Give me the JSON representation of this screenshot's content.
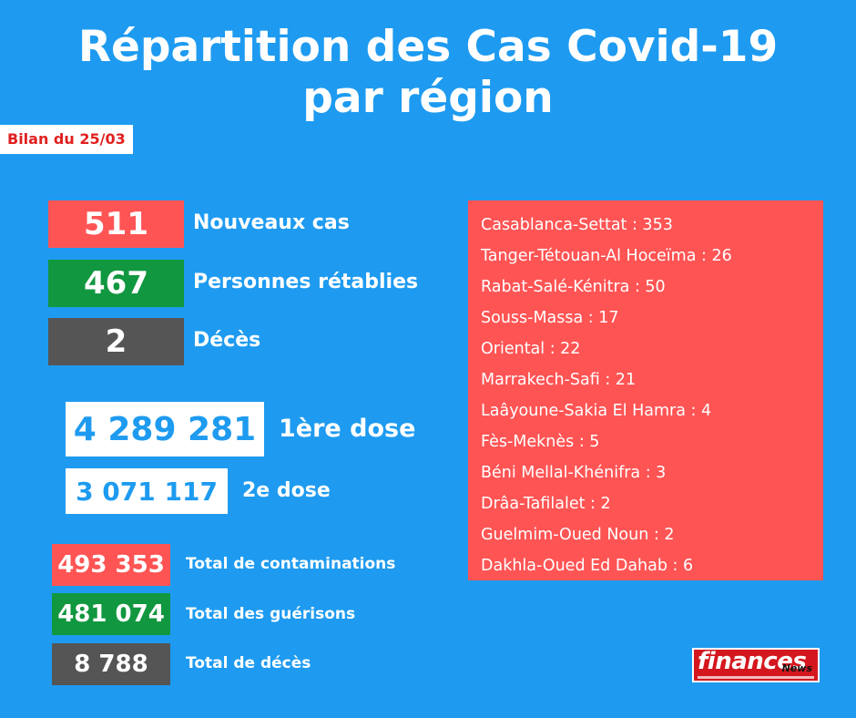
{
  "header": {
    "title_line1": "Répartition des Cas Covid-19",
    "title_line2": "par région",
    "bilan": "Bilan du 25/03"
  },
  "daily": {
    "new_cases": {
      "value": "511",
      "label": "Nouveaux cas"
    },
    "recovered": {
      "value": "467",
      "label": "Personnes rétablies"
    },
    "deaths": {
      "value": "2",
      "label": "Décès"
    }
  },
  "vaccination": {
    "dose1": {
      "value": "4 289 281",
      "label": "1ère dose"
    },
    "dose2": {
      "value": "3 071 117",
      "label": "2e dose"
    }
  },
  "totals": {
    "contaminations": {
      "value": "493 353",
      "label": "Total de contaminations"
    },
    "recoveries": {
      "value": "481 074",
      "label": "Total des guérisons"
    },
    "deaths": {
      "value": "8 788",
      "label": "Total de décès"
    }
  },
  "regions": [
    "Casablanca-Settat : 353",
    "Tanger-Tétouan-Al Hoceïma : 26",
    "Rabat-Salé-Kénitra : 50",
    "Souss-Massa : 17",
    "Oriental : 22",
    "Marrakech-Safi : 21",
    "Laâyoune-Sakia El Hamra : 4",
    "Fès-Meknès : 5",
    "Béni Mellal-Khénifra : 3",
    "Drâa-Tafilalet : 2",
    "Guelmim-Oued Noun : 2",
    "Dakhla-Oued Ed Dahab : 6"
  ],
  "logo": {
    "word": "finances",
    "sub": "News"
  },
  "colors": {
    "background": "#1e9bf0",
    "red": "#ff5454",
    "green": "#11973f",
    "grey": "#555555"
  }
}
